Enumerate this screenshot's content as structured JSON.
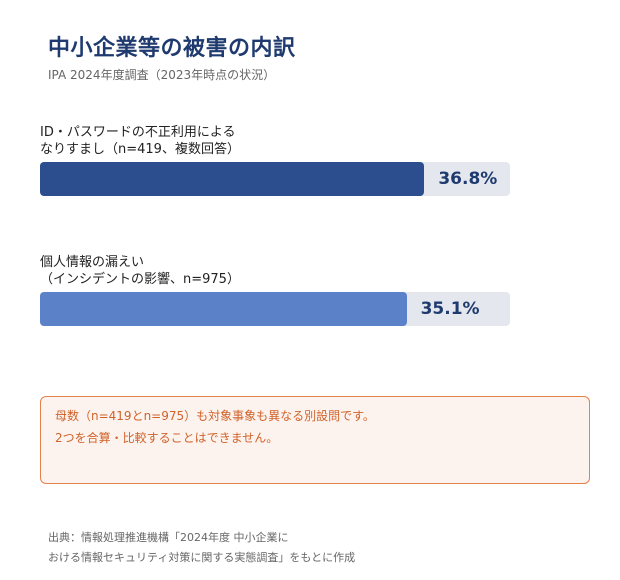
{
  "title": "中小企業等の被害の内訳",
  "subtitle": "IPA 2024年度調査（2023年時点の状況）",
  "chart_data": {
    "type": "bar",
    "orientation": "horizontal",
    "xlim": [
      0,
      45
    ],
    "bars": [
      {
        "label_line1": "ID・パスワードの不正利用による",
        "label_line2": "なりすまし（n=419、複数回答）",
        "value": 36.8,
        "value_label": "36.8%",
        "color": "#2c4e8e"
      },
      {
        "label_line1": "個人情報の漏えい",
        "label_line2": "（インシデントの影響、n=975）",
        "value": 35.1,
        "value_label": "35.1%",
        "color": "#5b82c8"
      }
    ]
  },
  "note": {
    "line1": "母数（n=419とn=975）も対象事象も異なる別設問です。",
    "line2": "2つを合算・比較することはできません。"
  },
  "source": {
    "line1": "出典：情報処理推進機構「2024年度 中小企業に",
    "line2": "おける情報セキュリティ対策に関する実態調査」をもとに作成"
  }
}
